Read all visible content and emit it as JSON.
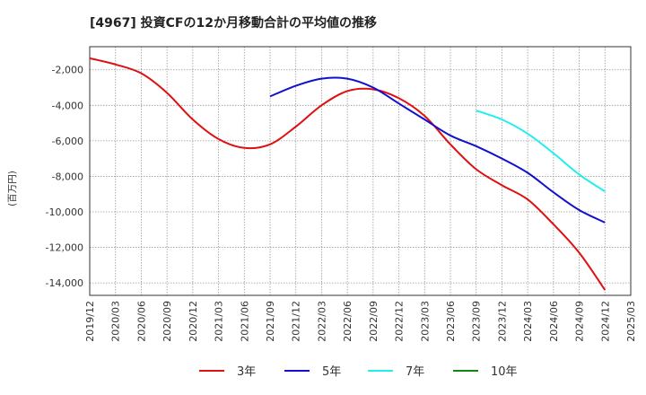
{
  "chart_data": {
    "type": "line",
    "title": "[4967]  投資CFの12か月移動合計の平均値の推移",
    "ylabel": "(百万円)",
    "xlabel": "",
    "ylim": [
      -14700,
      -700
    ],
    "yticks": [
      -2000,
      -4000,
      -6000,
      -8000,
      -10000,
      -12000,
      -14000
    ],
    "ytick_labels": [
      "-2,000",
      "-4,000",
      "-6,000",
      "-8,000",
      "-10,000",
      "-12,000",
      "-14,000"
    ],
    "x_categories": [
      "2019/12",
      "2020/03",
      "2020/06",
      "2020/09",
      "2020/12",
      "2021/03",
      "2021/06",
      "2021/09",
      "2021/12",
      "2022/03",
      "2022/06",
      "2022/09",
      "2022/12",
      "2023/03",
      "2023/06",
      "2023/09",
      "2023/12",
      "2024/03",
      "2024/06",
      "2024/09",
      "2024/12",
      "2025/03"
    ],
    "grid": true,
    "legend_position": "bottom",
    "series": [
      {
        "name": "3年",
        "color": "#dd1111",
        "x": [
          "2019/12",
          "2020/03",
          "2020/06",
          "2020/09",
          "2020/12",
          "2021/03",
          "2021/06",
          "2021/09",
          "2021/12",
          "2022/03",
          "2022/06",
          "2022/09",
          "2022/12",
          "2023/03",
          "2023/06",
          "2023/09",
          "2023/12",
          "2024/03",
          "2024/06",
          "2024/09",
          "2024/12"
        ],
        "values": [
          -1350,
          -1700,
          -2200,
          -3300,
          -4800,
          -5900,
          -6400,
          -6200,
          -5200,
          -4000,
          -3200,
          -3100,
          -3600,
          -4600,
          -6200,
          -7600,
          -8500,
          -9300,
          -10700,
          -12300,
          -14400
        ]
      },
      {
        "name": "5年",
        "color": "#1111cc",
        "x": [
          "2021/09",
          "2021/12",
          "2022/03",
          "2022/06",
          "2022/09",
          "2022/12",
          "2023/03",
          "2023/06",
          "2023/09",
          "2023/12",
          "2024/03",
          "2024/06",
          "2024/09",
          "2024/12"
        ],
        "values": [
          -3500,
          -2900,
          -2500,
          -2500,
          -3000,
          -3900,
          -4800,
          -5700,
          -6300,
          -7000,
          -7800,
          -8900,
          -9900,
          -10600
        ]
      },
      {
        "name": "7年",
        "color": "#22eeee",
        "x": [
          "2023/09",
          "2023/12",
          "2024/03",
          "2024/06",
          "2024/09",
          "2024/12"
        ],
        "values": [
          -4300,
          -4800,
          -5600,
          -6700,
          -7900,
          -8850
        ]
      },
      {
        "name": "10年",
        "color": "#118811",
        "x": [],
        "values": []
      }
    ]
  }
}
